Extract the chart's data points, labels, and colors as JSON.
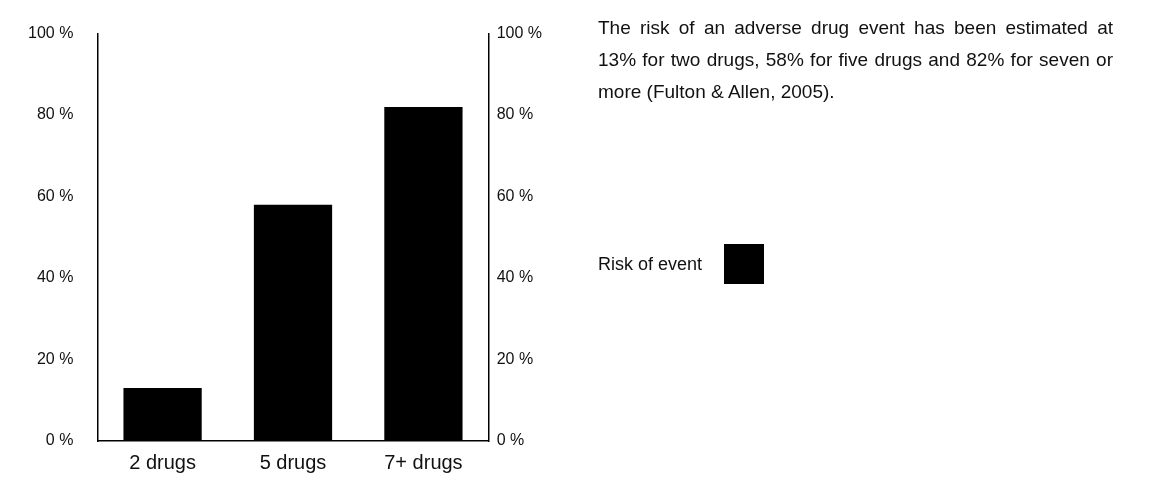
{
  "chart_data": {
    "type": "bar",
    "categories": [
      "2 drugs",
      "5 drugs",
      "7+ drugs"
    ],
    "series": [
      {
        "name": "Risk of event",
        "color": "#000000",
        "values": [
          13,
          58,
          82
        ]
      }
    ],
    "ylim": [
      0,
      100
    ],
    "yticks": [
      {
        "value": 0,
        "label": "0 %"
      },
      {
        "value": 20,
        "label": "20 %"
      },
      {
        "value": 40,
        "label": "40 %"
      },
      {
        "value": 60,
        "label": "60 %"
      },
      {
        "value": 80,
        "label": "80 %"
      },
      {
        "value": 100,
        "label": "100 %"
      }
    ],
    "y2lim": [
      0,
      100
    ],
    "y2ticks": [
      {
        "value": 0,
        "label": "0 %"
      },
      {
        "value": 20,
        "label": "20 %"
      },
      {
        "value": 40,
        "label": "40 %"
      },
      {
        "value": 60,
        "label": "60 %"
      },
      {
        "value": 80,
        "label": "80 %"
      },
      {
        "value": 100,
        "label": "100 %"
      }
    ],
    "grid": false,
    "legend": "right",
    "annotations": [
      "The risk of an adverse drug event has been estimated at 13% for two drugs, 58% for five drugs and 82% for seven or more (Fulton & Allen, 2005)."
    ]
  }
}
